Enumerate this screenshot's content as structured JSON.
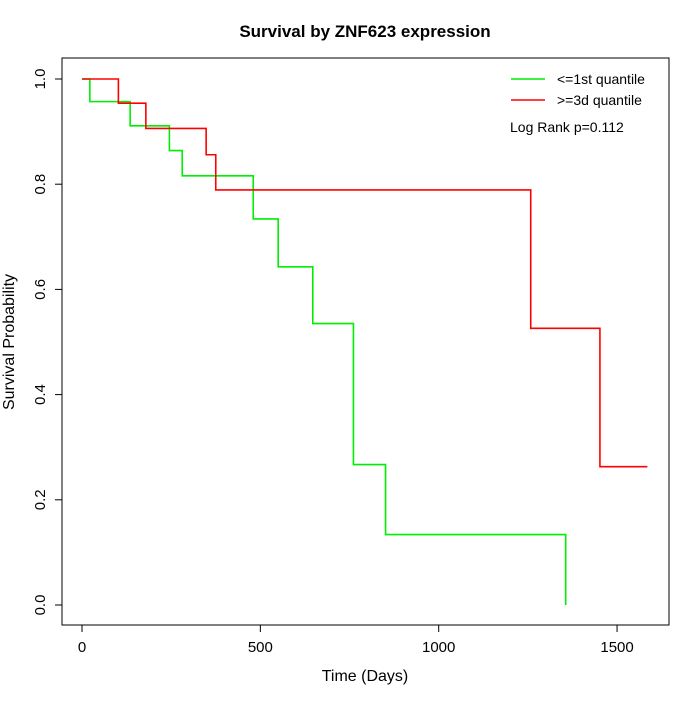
{
  "chart_data": {
    "type": "line",
    "title": "Survival by ZNF623 expression",
    "xlabel": "Time (Days)",
    "ylabel": "Survival Probability",
    "xlim": [
      0,
      1600
    ],
    "ylim": [
      0,
      1
    ],
    "xticks": [
      0,
      500,
      1000,
      1500
    ],
    "yticks": [
      0.0,
      0.2,
      0.4,
      0.6,
      0.8,
      1.0
    ],
    "xtick_labels": [
      "0",
      "500",
      "1000",
      "1500"
    ],
    "ytick_labels": [
      "0.0",
      "0.2",
      "0.4",
      "0.6",
      "0.8",
      "1.0"
    ],
    "legend_position": "top-right",
    "annotation": "Log Rank p=0.112",
    "series": [
      {
        "name": "<=1st quantile",
        "color": "#00ee00",
        "step": "post",
        "x": [
          0,
          22,
          135,
          245,
          281,
          480,
          550,
          647,
          761,
          851,
          1356,
          1356
        ],
        "y": [
          1.0,
          0.957,
          0.911,
          0.864,
          0.816,
          0.734,
          0.643,
          0.535,
          0.267,
          0.134,
          0.134,
          0.0
        ]
      },
      {
        "name": ">=3d quantile",
        "color": "#ff0000",
        "step": "post",
        "x": [
          0,
          102,
          179,
          348,
          375,
          1258,
          1452,
          1585
        ],
        "y": [
          1.0,
          0.954,
          0.906,
          0.856,
          0.789,
          0.526,
          0.263,
          0.263
        ]
      }
    ]
  }
}
